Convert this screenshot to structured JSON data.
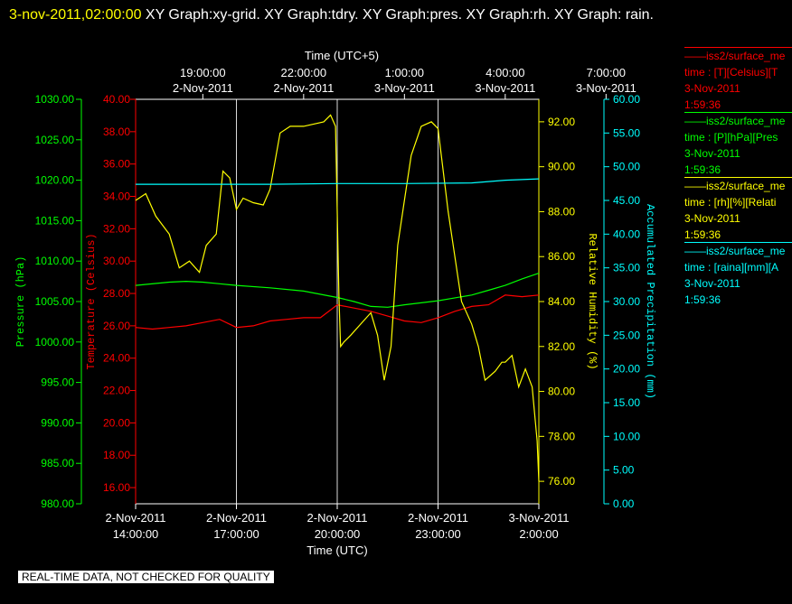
{
  "header": {
    "timestamp": "3-nov-2011,02:00:00",
    "title": " XY Graph:xy-grid.  XY Graph:tdry.  XY Graph:pres.  XY Graph:rh.  XY Graph: rain."
  },
  "note": "REAL-TIME DATA, NOT CHECKED FOR QUALITY",
  "legend": [
    {
      "name": "iss2/surface_me",
      "units": "time : [T][Celsius][T",
      "date": "3-Nov-2011",
      "time": "1:59:36",
      "color": "#ff0000"
    },
    {
      "name": "iss2/surface_me",
      "units": "time : [P][hPa][Pres",
      "date": "3-Nov-2011",
      "time": "1:59:36",
      "color": "#00ff00"
    },
    {
      "name": "iss2/surface_me",
      "units": "time : [rh][%][Relati",
      "date": "3-Nov-2011",
      "time": "1:59:36",
      "color": "#ffff00"
    },
    {
      "name": "iss2/surface_me",
      "units": "time : [raina][mm][A",
      "date": "3-Nov-2011",
      "time": "1:59:36",
      "color": "#00ffff"
    }
  ],
  "chart_data": {
    "type": "line",
    "x_unit": "hours (UTC)",
    "xlim": [
      "2-Nov-2011 14:00:00",
      "3-Nov-2011 2:00:00"
    ],
    "top_axis_title": "Time (UTC+5)",
    "top_ticks": [
      {
        "time": "19:00:00",
        "date": "2-Nov-2011"
      },
      {
        "time": "22:00:00",
        "date": "2-Nov-2011"
      },
      {
        "time": "1:00:00",
        "date": "3-Nov-2011"
      },
      {
        "time": "4:00:00",
        "date": "3-Nov-2011"
      },
      {
        "time": "7:00:00",
        "date": "3-Nov-2011"
      }
    ],
    "bottom_axis_title": "Time (UTC)",
    "bottom_ticks": [
      {
        "date": "2-Nov-2011",
        "time": "14:00:00"
      },
      {
        "date": "2-Nov-2011",
        "time": "17:00:00"
      },
      {
        "date": "2-Nov-2011",
        "time": "20:00:00"
      },
      {
        "date": "2-Nov-2011",
        "time": "23:00:00"
      },
      {
        "date": "3-Nov-2011",
        "time": "2:00:00"
      }
    ],
    "grid": "vertical lines at bottom ticks",
    "axes": {
      "pressure": {
        "label": "Pressure (hPa)",
        "ylim": [
          980,
          1030
        ],
        "ticks": [
          "980.00",
          "985.00",
          "990.00",
          "995.00",
          "1000.00",
          "1005.00",
          "1010.00",
          "1015.00",
          "1020.00",
          "1025.00",
          "1030.00"
        ],
        "color": "#00ff00"
      },
      "temperature": {
        "label": "Temperature (Celsius)",
        "ylim": [
          15,
          40
        ],
        "ticks": [
          "16.00",
          "18.00",
          "20.00",
          "22.00",
          "24.00",
          "26.00",
          "28.00",
          "30.00",
          "32.00",
          "34.00",
          "36.00",
          "38.00",
          "40.00"
        ],
        "color": "#ff0000"
      },
      "rh": {
        "label": "Relative Humidity (%)",
        "ylim": [
          75,
          93
        ],
        "ticks": [
          "76.00",
          "78.00",
          "80.00",
          "82.00",
          "84.00",
          "86.00",
          "88.00",
          "90.00",
          "92.00"
        ],
        "color": "#ffff00"
      },
      "rain": {
        "label": "Accumulated Precipitation (mm)",
        "ylim": [
          0,
          60
        ],
        "ticks": [
          "0.00",
          "5.00",
          "10.00",
          "15.00",
          "20.00",
          "25.00",
          "30.00",
          "35.00",
          "40.00",
          "45.00",
          "50.00",
          "55.00",
          "60.00"
        ],
        "color": "#00ffff"
      }
    },
    "series": [
      {
        "axis": "temperature",
        "color": "#ff0000",
        "x": [
          0,
          0.5,
          1,
          1.5,
          2,
          2.5,
          3,
          3.5,
          4,
          4.5,
          5,
          5.5,
          6,
          6.5,
          7,
          7.5,
          8,
          8.5,
          9,
          9.5,
          10,
          10.5,
          11,
          11.5,
          12
        ],
        "y": [
          25.9,
          25.8,
          25.9,
          26.0,
          26.2,
          26.4,
          25.9,
          26.0,
          26.3,
          26.4,
          26.5,
          26.5,
          27.3,
          27.1,
          26.9,
          26.6,
          26.3,
          26.2,
          26.5,
          26.9,
          27.2,
          27.3,
          27.9,
          27.8,
          27.9
        ]
      },
      {
        "axis": "pressure",
        "color": "#00ff00",
        "x": [
          0,
          1,
          1.5,
          2,
          2.5,
          3,
          4,
          5,
          6,
          6.5,
          7,
          7.5,
          8,
          9,
          10,
          10.5,
          11,
          11.5,
          12
        ],
        "y": [
          1007.0,
          1007.4,
          1007.5,
          1007.4,
          1007.2,
          1007.0,
          1006.7,
          1006.3,
          1005.5,
          1005.0,
          1004.4,
          1004.3,
          1004.6,
          1005.1,
          1005.8,
          1006.4,
          1007.0,
          1007.8,
          1008.5
        ]
      },
      {
        "axis": "rh",
        "color": "#ffff00",
        "x": [
          0,
          0.3,
          0.6,
          1,
          1.3,
          1.6,
          1.9,
          2.1,
          2.4,
          2.6,
          2.8,
          3.0,
          3.2,
          3.5,
          3.8,
          4.0,
          4.3,
          4.6,
          5.0,
          5.3,
          5.6,
          5.8,
          5.95,
          6.05,
          6.1,
          6.2,
          6.4,
          6.7,
          7.0,
          7.2,
          7.4,
          7.6,
          7.8,
          8.0,
          8.2,
          8.5,
          8.8,
          9.0,
          9.3,
          9.5,
          9.7,
          10.0,
          10.2,
          10.4,
          10.7,
          10.9,
          11.0,
          11.2,
          11.4,
          11.6,
          11.8,
          11.95,
          12.0
        ],
        "y": [
          88.5,
          88.8,
          87.8,
          87.0,
          85.5,
          85.8,
          85.3,
          86.5,
          87.0,
          89.8,
          89.5,
          88.1,
          88.6,
          88.4,
          88.3,
          89.0,
          91.5,
          91.8,
          91.8,
          91.9,
          92.0,
          92.3,
          91.8,
          84.2,
          82.0,
          82.2,
          82.5,
          83.0,
          83.5,
          82.5,
          80.5,
          82.0,
          86.5,
          88.5,
          90.5,
          91.8,
          92.0,
          91.7,
          88.0,
          86.0,
          84.0,
          83.0,
          82.0,
          80.5,
          80.9,
          81.3,
          81.3,
          81.6,
          80.2,
          81.0,
          80.2,
          77.8,
          76.0
        ]
      },
      {
        "axis": "rain",
        "color": "#00ffff",
        "x": [
          0,
          2,
          4,
          6,
          8,
          10,
          11,
          12
        ],
        "y": [
          47.4,
          47.4,
          47.4,
          47.5,
          47.5,
          47.6,
          48.0,
          48.2
        ]
      }
    ]
  }
}
